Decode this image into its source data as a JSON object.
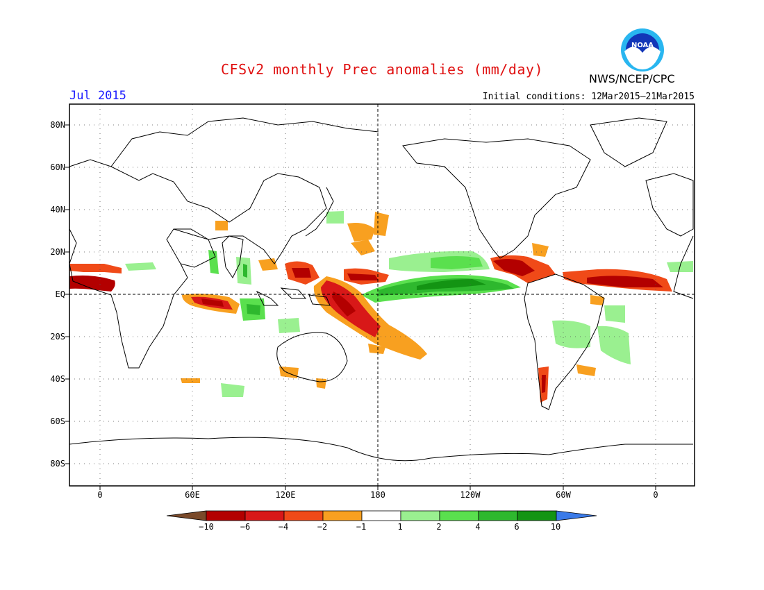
{
  "title": "CFSv2 monthly Prec anomalies (mm/day)",
  "month": "Jul 2015",
  "initial_conditions": "Initial conditions: 12Mar2015–21Mar2015",
  "agency": "NWS/NCEP/CPC",
  "logo_text": "NOAA",
  "logo_icon": "noaa-seagull-logo",
  "y_ticks": [
    "80N",
    "60N",
    "40N",
    "20N",
    "EQ",
    "20S",
    "40S",
    "60S",
    "80S"
  ],
  "x_ticks": [
    "0",
    "60E",
    "120E",
    "180",
    "120W",
    "60W",
    "0"
  ],
  "colorbar": {
    "labels": [
      "−10",
      "−6",
      "−4",
      "−2",
      "−1",
      "1",
      "2",
      "4",
      "6",
      "10"
    ],
    "colors": [
      "#7a4a2a",
      "#b30000",
      "#d81818",
      "#f04a18",
      "#f8a020",
      "#ffffff",
      "#9af090",
      "#5ae04e",
      "#2eb82e",
      "#139413",
      "#3a7ae8"
    ]
  },
  "colors": {
    "title": "#e01010",
    "month": "#1a1aff"
  }
}
